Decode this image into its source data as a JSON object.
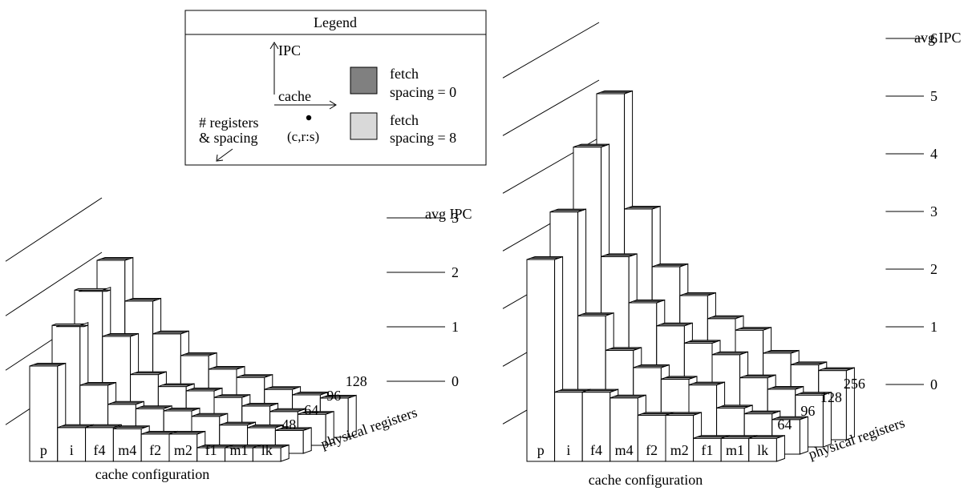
{
  "legend": {
    "title": "Legend",
    "axis_ipc": "IPC",
    "axis_cache": "cache",
    "axis_registers": [
      "# registers",
      "& spacing"
    ],
    "point_label": "(c,r:s)",
    "items": [
      {
        "label": [
          "fetch",
          "spacing = 0"
        ],
        "color": "#808080"
      },
      {
        "label": [
          "fetch",
          "spacing = 8"
        ],
        "color": "#d9d9d9"
      }
    ]
  },
  "colors": {
    "spacing0": "#808080",
    "spacing8": "#d9d9d9",
    "face": "#ffffff",
    "line": "#000000"
  },
  "chart_data": [
    {
      "type": "bar",
      "subtype": "3d-bar",
      "xlabel": "cache configuration",
      "zlabel": "physical registers",
      "ylabel": "avg IPC",
      "ylim": [
        0,
        3
      ],
      "yticks": [
        "0",
        "1",
        "2",
        "3"
      ],
      "categories": [
        "p",
        "i",
        "f4",
        "m4",
        "f2",
        "m2",
        "f1",
        "m1",
        "lk"
      ],
      "registers": [
        "48",
        "64",
        "96",
        "128"
      ],
      "series": [
        {
          "name": "fetch spacing = 8",
          "values": [
            [
              1.75,
              2.35,
              2.85,
              3.2
            ],
            [
              0.6,
              1.2,
              1.95,
              2.45
            ],
            [
              0.6,
              0.85,
              1.25,
              1.85
            ],
            [
              0.6,
              0.8,
              1.05,
              1.45
            ],
            [
              0.5,
              0.75,
              0.95,
              1.2
            ],
            [
              0.5,
              0.65,
              0.85,
              1.05
            ],
            [
              0.25,
              0.5,
              0.7,
              0.85
            ],
            [
              0.25,
              0.45,
              0.6,
              0.75
            ],
            [
              0.25,
              0.4,
              0.55,
              0.7
            ]
          ]
        },
        {
          "name": "fetch spacing = 0",
          "values": [
            [
              1.75,
              2.3,
              2.8,
              3.25
            ],
            [
              0.62,
              1.25,
              2.0,
              2.5
            ],
            [
              0.62,
              0.9,
              1.3,
              1.9
            ],
            [
              0.6,
              0.82,
              1.08,
              1.5
            ],
            [
              0.5,
              0.78,
              1.0,
              1.25
            ],
            [
              0.5,
              0.68,
              0.88,
              1.1
            ],
            [
              0.25,
              0.52,
              0.72,
              0.88
            ],
            [
              0.25,
              0.47,
              0.62,
              0.78
            ],
            [
              0.25,
              0.42,
              0.57,
              0.72
            ]
          ]
        }
      ]
    },
    {
      "type": "bar",
      "subtype": "3d-bar",
      "xlabel": "cache configuration",
      "zlabel": "physical registers",
      "ylabel": "avg IPC",
      "ylim": [
        0,
        6
      ],
      "yticks": [
        "0",
        "1",
        "2",
        "3",
        "4",
        "5",
        "6"
      ],
      "categories": [
        "p",
        "i",
        "f4",
        "m4",
        "f2",
        "m2",
        "f1",
        "m1",
        "lk"
      ],
      "registers": [
        "64",
        "96",
        "128",
        "256"
      ],
      "series": [
        {
          "name": "fetch spacing = 8",
          "values": [
            [
              3.5,
              4.2,
              5.2,
              6.0
            ],
            [
              1.2,
              2.4,
              3.2,
              3.8
            ],
            [
              1.2,
              1.8,
              2.4,
              2.8
            ],
            [
              1.1,
              1.5,
              2.0,
              2.4
            ],
            [
              0.8,
              1.3,
              1.7,
              2.0
            ],
            [
              0.8,
              1.2,
              1.5,
              1.8
            ],
            [
              0.4,
              0.8,
              1.2,
              1.5
            ],
            [
              0.4,
              0.7,
              1.0,
              1.3
            ],
            [
              0.4,
              0.6,
              0.9,
              1.2
            ]
          ]
        },
        {
          "name": "fetch spacing = 0",
          "values": [
            [
              3.5,
              4.2,
              5.2,
              6.0
            ],
            [
              1.2,
              2.4,
              3.3,
              4.0
            ],
            [
              1.2,
              1.8,
              2.5,
              3.0
            ],
            [
              1.1,
              1.5,
              2.1,
              2.5
            ],
            [
              0.8,
              1.3,
              1.8,
              2.1
            ],
            [
              0.8,
              1.2,
              1.6,
              1.9
            ],
            [
              0.4,
              0.8,
              1.2,
              1.5
            ],
            [
              0.4,
              0.7,
              1.0,
              1.3
            ],
            [
              0.4,
              0.6,
              0.9,
              1.2
            ]
          ]
        }
      ]
    }
  ]
}
